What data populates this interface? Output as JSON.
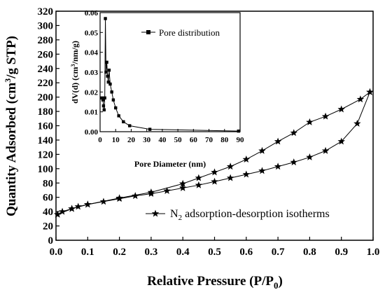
{
  "chart_data": [
    {
      "type": "line",
      "xlabel_main": "Relative Pressure (P/P",
      "xlabel_sub": "0",
      "xlabel_end": ")",
      "ylabel_main": "Quantity Adsorbed (cm",
      "ylabel_sup": "3",
      "ylabel_end": "/g STP)",
      "xlim": [
        0,
        1.0
      ],
      "ylim": [
        0,
        320
      ],
      "xticks": [
        "0.0",
        "0.1",
        "0.2",
        "0.3",
        "0.4",
        "0.5",
        "0.6",
        "0.7",
        "0.8",
        "0.9",
        "1.0"
      ],
      "yticks": [
        "0",
        "20",
        "40",
        "60",
        "80",
        "100",
        "120",
        "140",
        "160",
        "180",
        "200",
        "220",
        "240",
        "260",
        "280",
        "300",
        "320"
      ],
      "grid": false,
      "legend": {
        "position": "bottom-right",
        "prefix": "N",
        "sub": "2",
        "suffix": " adsorption-desorption isotherms"
      },
      "marker": "star",
      "series": [
        {
          "segment": "adsorption",
          "x": [
            0.005,
            0.02,
            0.05,
            0.07,
            0.1,
            0.15,
            0.2,
            0.25,
            0.3,
            0.35,
            0.4,
            0.45,
            0.5,
            0.55,
            0.6,
            0.65,
            0.7,
            0.75,
            0.8,
            0.85,
            0.9,
            0.95,
            0.99
          ],
          "y": [
            36,
            40,
            44,
            47,
            50,
            54,
            58,
            62,
            65,
            69,
            73,
            77,
            82,
            87,
            92,
            97,
            103,
            109,
            116,
            125,
            138,
            163,
            207
          ]
        },
        {
          "segment": "desorption",
          "x": [
            0.99,
            0.96,
            0.9,
            0.85,
            0.8,
            0.75,
            0.7,
            0.65,
            0.6,
            0.55,
            0.5,
            0.45,
            0.4,
            0.3,
            0.2,
            0.1,
            0.05,
            0.005
          ],
          "y": [
            207,
            197,
            183,
            173,
            165,
            150,
            138,
            125,
            113,
            103,
            95,
            87,
            79,
            67,
            59,
            50,
            44,
            36
          ]
        }
      ]
    },
    {
      "type": "line",
      "xlabel": "Pore Diameter (nm)",
      "ylabel_main": "dV(d) (cm",
      "ylabel_sup": "3",
      "ylabel_end": "/nm/g)",
      "xlim": [
        0,
        90
      ],
      "ylim": [
        0,
        0.06
      ],
      "xticks": [
        "0",
        "10",
        "20",
        "30",
        "40",
        "50",
        "60",
        "70",
        "80",
        "90"
      ],
      "yticks": [
        "0.00",
        "0.01",
        "0.02",
        "0.03",
        "0.04",
        "0.05",
        "0.06"
      ],
      "grid": false,
      "legend": {
        "position": "top-right",
        "text": "Pore distribution"
      },
      "marker": "square",
      "series": [
        {
          "name": "Pore distribution",
          "x": [
            1.2,
            1.8,
            2.2,
            2.6,
            3.0,
            3.4,
            3.8,
            4.3,
            4.8,
            5.3,
            5.8,
            6.5,
            7.5,
            8.5,
            10,
            12,
            15,
            19,
            32,
            89
          ],
          "y": [
            0.017,
            0.016,
            0.013,
            0.011,
            0.017,
            0.057,
            0.03,
            0.035,
            0.028,
            0.025,
            0.031,
            0.024,
            0.02,
            0.016,
            0.012,
            0.008,
            0.005,
            0.003,
            0.0012,
            0.0003
          ]
        }
      ]
    }
  ]
}
